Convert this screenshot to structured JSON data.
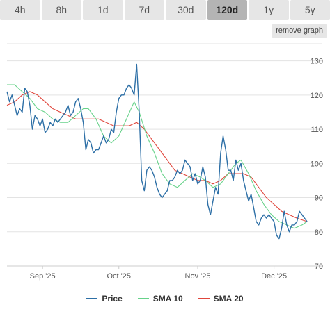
{
  "tabs": [
    {
      "label": "4h",
      "active": false
    },
    {
      "label": "8h",
      "active": false
    },
    {
      "label": "1d",
      "active": false
    },
    {
      "label": "7d",
      "active": false
    },
    {
      "label": "30d",
      "active": false
    },
    {
      "label": "120d",
      "active": true
    },
    {
      "label": "1y",
      "active": false
    },
    {
      "label": "5y",
      "active": false
    }
  ],
  "remove_button": "remove graph",
  "legend": {
    "price": "Price",
    "sma10": "SMA 10",
    "sma20": "SMA 20"
  },
  "colors": {
    "price": "#2d6fa6",
    "sma10": "#67d28a",
    "sma20": "#e0463c",
    "grid": "#e3e3e3",
    "axis_text": "#555555"
  },
  "chart_data": {
    "type": "line",
    "xlim": [
      "2025-08-18",
      "2025-12-20"
    ],
    "ylim": [
      70,
      135
    ],
    "yticks": [
      70,
      80,
      90,
      100,
      110,
      120,
      130
    ],
    "xticks": [
      {
        "date": "2025-09-01",
        "label": "Sep '25"
      },
      {
        "date": "2025-10-01",
        "label": "Oct '25"
      },
      {
        "date": "2025-11-01",
        "label": "Nov '25"
      },
      {
        "date": "2025-12-01",
        "label": "Dec '25"
      }
    ],
    "series": [
      {
        "name": "Price",
        "points": [
          [
            "2025-08-18",
            121
          ],
          [
            "2025-08-19",
            118
          ],
          [
            "2025-08-20",
            120
          ],
          [
            "2025-08-21",
            117
          ],
          [
            "2025-08-22",
            114
          ],
          [
            "2025-08-23",
            116
          ],
          [
            "2025-08-24",
            115
          ],
          [
            "2025-08-25",
            122
          ],
          [
            "2025-08-26",
            121
          ],
          [
            "2025-08-27",
            117
          ],
          [
            "2025-08-28",
            110
          ],
          [
            "2025-08-29",
            114
          ],
          [
            "2025-08-30",
            113
          ],
          [
            "2025-08-31",
            111
          ],
          [
            "2025-09-01",
            113
          ],
          [
            "2025-09-02",
            109
          ],
          [
            "2025-09-03",
            110
          ],
          [
            "2025-09-04",
            112
          ],
          [
            "2025-09-05",
            111
          ],
          [
            "2025-09-06",
            113
          ],
          [
            "2025-09-07",
            112
          ],
          [
            "2025-09-08",
            113
          ],
          [
            "2025-09-09",
            114
          ],
          [
            "2025-09-10",
            115
          ],
          [
            "2025-09-11",
            117
          ],
          [
            "2025-09-12",
            114
          ],
          [
            "2025-09-13",
            115
          ],
          [
            "2025-09-14",
            118
          ],
          [
            "2025-09-15",
            119
          ],
          [
            "2025-09-16",
            116
          ],
          [
            "2025-09-17",
            112
          ],
          [
            "2025-09-18",
            104
          ],
          [
            "2025-09-19",
            107
          ],
          [
            "2025-09-20",
            106
          ],
          [
            "2025-09-21",
            103
          ],
          [
            "2025-09-22",
            104
          ],
          [
            "2025-09-23",
            104
          ],
          [
            "2025-09-24",
            106
          ],
          [
            "2025-09-25",
            108
          ],
          [
            "2025-09-26",
            106
          ],
          [
            "2025-09-27",
            107
          ],
          [
            "2025-09-28",
            110
          ],
          [
            "2025-09-29",
            109
          ],
          [
            "2025-09-30",
            115
          ],
          [
            "2025-10-01",
            119
          ],
          [
            "2025-10-02",
            120
          ],
          [
            "2025-10-03",
            120
          ],
          [
            "2025-10-04",
            122
          ],
          [
            "2025-10-05",
            123
          ],
          [
            "2025-10-06",
            122
          ],
          [
            "2025-10-07",
            120
          ],
          [
            "2025-10-08",
            129
          ],
          [
            "2025-10-09",
            115
          ],
          [
            "2025-10-10",
            95
          ],
          [
            "2025-10-11",
            92
          ],
          [
            "2025-10-12",
            98
          ],
          [
            "2025-10-13",
            99
          ],
          [
            "2025-10-14",
            98
          ],
          [
            "2025-10-15",
            96
          ],
          [
            "2025-10-16",
            93
          ],
          [
            "2025-10-17",
            91
          ],
          [
            "2025-10-18",
            90
          ],
          [
            "2025-10-19",
            91
          ],
          [
            "2025-10-20",
            92
          ],
          [
            "2025-10-21",
            95
          ],
          [
            "2025-10-22",
            95
          ],
          [
            "2025-10-23",
            96
          ],
          [
            "2025-10-24",
            98
          ],
          [
            "2025-10-25",
            97
          ],
          [
            "2025-10-26",
            98
          ],
          [
            "2025-10-27",
            101
          ],
          [
            "2025-10-28",
            100
          ],
          [
            "2025-10-29",
            99
          ],
          [
            "2025-10-30",
            95
          ],
          [
            "2025-10-31",
            97
          ],
          [
            "2025-11-01",
            94
          ],
          [
            "2025-11-02",
            95
          ],
          [
            "2025-11-03",
            99
          ],
          [
            "2025-11-04",
            96
          ],
          [
            "2025-11-05",
            88
          ],
          [
            "2025-11-06",
            85
          ],
          [
            "2025-11-07",
            89
          ],
          [
            "2025-11-08",
            93
          ],
          [
            "2025-11-09",
            91
          ],
          [
            "2025-11-10",
            103
          ],
          [
            "2025-11-11",
            108
          ],
          [
            "2025-11-12",
            104
          ],
          [
            "2025-11-13",
            98
          ],
          [
            "2025-11-14",
            98
          ],
          [
            "2025-11-15",
            95
          ],
          [
            "2025-11-16",
            101
          ],
          [
            "2025-11-17",
            98
          ],
          [
            "2025-11-18",
            100
          ],
          [
            "2025-11-19",
            95
          ],
          [
            "2025-11-20",
            92
          ],
          [
            "2025-11-21",
            89
          ],
          [
            "2025-11-22",
            91
          ],
          [
            "2025-11-23",
            87
          ],
          [
            "2025-11-24",
            83
          ],
          [
            "2025-11-25",
            82
          ],
          [
            "2025-11-26",
            84
          ],
          [
            "2025-11-27",
            85
          ],
          [
            "2025-11-28",
            84
          ],
          [
            "2025-11-29",
            85
          ],
          [
            "2025-11-30",
            84
          ],
          [
            "2025-12-01",
            83
          ],
          [
            "2025-12-02",
            79
          ],
          [
            "2025-12-03",
            78
          ],
          [
            "2025-12-04",
            81
          ],
          [
            "2025-12-05",
            86
          ],
          [
            "2025-12-06",
            82
          ],
          [
            "2025-12-07",
            80
          ],
          [
            "2025-12-08",
            82
          ],
          [
            "2025-12-09",
            82
          ],
          [
            "2025-12-10",
            83
          ],
          [
            "2025-12-11",
            86
          ],
          [
            "2025-12-12",
            85
          ],
          [
            "2025-12-13",
            84
          ],
          [
            "2025-12-14",
            83
          ]
        ]
      },
      {
        "name": "SMA 10",
        "points": [
          [
            "2025-08-18",
            123
          ],
          [
            "2025-08-21",
            123
          ],
          [
            "2025-08-24",
            121
          ],
          [
            "2025-08-27",
            119
          ],
          [
            "2025-08-30",
            116
          ],
          [
            "2025-09-02",
            115
          ],
          [
            "2025-09-05",
            113
          ],
          [
            "2025-09-08",
            112
          ],
          [
            "2025-09-11",
            112
          ],
          [
            "2025-09-14",
            114
          ],
          [
            "2025-09-17",
            116
          ],
          [
            "2025-09-19",
            116
          ],
          [
            "2025-09-22",
            113
          ],
          [
            "2025-09-25",
            108
          ],
          [
            "2025-09-28",
            106
          ],
          [
            "2025-10-01",
            108
          ],
          [
            "2025-10-04",
            113
          ],
          [
            "2025-10-07",
            118
          ],
          [
            "2025-10-09",
            115
          ],
          [
            "2025-10-12",
            108
          ],
          [
            "2025-10-15",
            103
          ],
          [
            "2025-10-18",
            97
          ],
          [
            "2025-10-21",
            94
          ],
          [
            "2025-10-24",
            93
          ],
          [
            "2025-10-27",
            95
          ],
          [
            "2025-10-30",
            97
          ],
          [
            "2025-11-02",
            96
          ],
          [
            "2025-11-04",
            95
          ],
          [
            "2025-11-07",
            93
          ],
          [
            "2025-11-10",
            94
          ],
          [
            "2025-11-13",
            97
          ],
          [
            "2025-11-16",
            100
          ],
          [
            "2025-11-18",
            101
          ],
          [
            "2025-11-21",
            97
          ],
          [
            "2025-11-24",
            92
          ],
          [
            "2025-11-27",
            88
          ],
          [
            "2025-11-30",
            85
          ],
          [
            "2025-12-03",
            83
          ],
          [
            "2025-12-06",
            82
          ],
          [
            "2025-12-09",
            81
          ],
          [
            "2025-12-12",
            82
          ],
          [
            "2025-12-14",
            83
          ]
        ]
      },
      {
        "name": "SMA 20",
        "points": [
          [
            "2025-08-18",
            117
          ],
          [
            "2025-08-21",
            118
          ],
          [
            "2025-08-24",
            120
          ],
          [
            "2025-08-27",
            121
          ],
          [
            "2025-08-30",
            120
          ],
          [
            "2025-09-02",
            118
          ],
          [
            "2025-09-05",
            116
          ],
          [
            "2025-09-08",
            115
          ],
          [
            "2025-09-11",
            114
          ],
          [
            "2025-09-14",
            113
          ],
          [
            "2025-09-17",
            113
          ],
          [
            "2025-09-20",
            113
          ],
          [
            "2025-09-23",
            113
          ],
          [
            "2025-09-26",
            112
          ],
          [
            "2025-09-29",
            111
          ],
          [
            "2025-10-02",
            111
          ],
          [
            "2025-10-05",
            111
          ],
          [
            "2025-10-08",
            112
          ],
          [
            "2025-10-11",
            110
          ],
          [
            "2025-10-14",
            107
          ],
          [
            "2025-10-17",
            104
          ],
          [
            "2025-10-20",
            101
          ],
          [
            "2025-10-23",
            98
          ],
          [
            "2025-10-26",
            97
          ],
          [
            "2025-10-29",
            96
          ],
          [
            "2025-11-01",
            95
          ],
          [
            "2025-11-04",
            95
          ],
          [
            "2025-11-07",
            94
          ],
          [
            "2025-11-10",
            95
          ],
          [
            "2025-11-13",
            97
          ],
          [
            "2025-11-16",
            97
          ],
          [
            "2025-11-19",
            97
          ],
          [
            "2025-11-22",
            96
          ],
          [
            "2025-11-25",
            93
          ],
          [
            "2025-11-28",
            90
          ],
          [
            "2025-12-01",
            88
          ],
          [
            "2025-12-04",
            86
          ],
          [
            "2025-12-07",
            85
          ],
          [
            "2025-12-10",
            84
          ],
          [
            "2025-12-14",
            83
          ]
        ]
      }
    ],
    "grid": true,
    "legend_position": "bottom-center"
  }
}
